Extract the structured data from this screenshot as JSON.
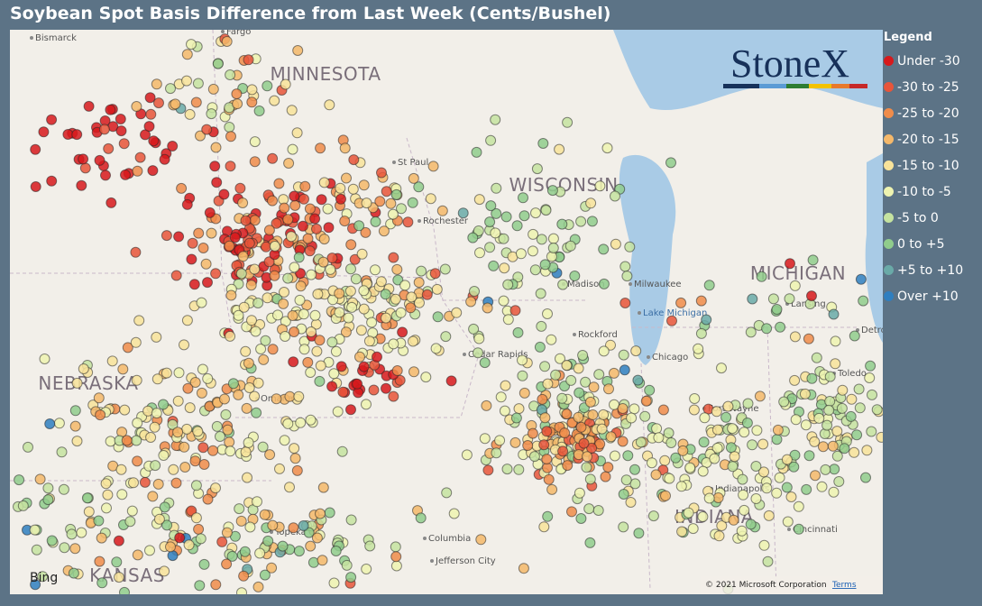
{
  "header": {
    "title": "Soybean Spot Basis Difference from Last Week (Cents/Bushel)"
  },
  "legend": {
    "title": "Legend",
    "items": [
      {
        "label": "Under -30",
        "color": "#d7191c"
      },
      {
        "label": "-30 to -25",
        "color": "#e8553a"
      },
      {
        "label": "-25 to -20",
        "color": "#f08c4a"
      },
      {
        "label": "-20 to -15",
        "color": "#f5b86a"
      },
      {
        "label": "-15 to -10",
        "color": "#f8e39a"
      },
      {
        "label": "-10 to -5",
        "color": "#eef3b0"
      },
      {
        "label": "-5 to 0",
        "color": "#c5e3a0"
      },
      {
        "label": "0 to +5",
        "color": "#90cc8c"
      },
      {
        "label": "+5 to +10",
        "color": "#6aaaa8"
      },
      {
        "label": "Over +10",
        "color": "#2f7fc0"
      }
    ]
  },
  "map": {
    "states": [
      "MINNESOTA",
      "WISCONSIN",
      "MICHIGAN",
      "NEBRASKA",
      "INDIANA",
      "KANSAS"
    ],
    "cities": [
      "Bismarck",
      "Fargo",
      "St Paul",
      "Rochester",
      "Madison",
      "Milwaukee",
      "Lake Michigan",
      "Lansing",
      "Rockford",
      "Chicago",
      "Cedar Rapids",
      "Omaha",
      "Topeka",
      "Columbia",
      "Jefferson City",
      "Indianapolis",
      "Cincinnati",
      "Toledo",
      "Detroit",
      "Fort Wayne"
    ],
    "brand": "StoneX",
    "provider": "Bing",
    "copyright": "© 2021 Microsoft Corporation",
    "terms": "Terms"
  }
}
